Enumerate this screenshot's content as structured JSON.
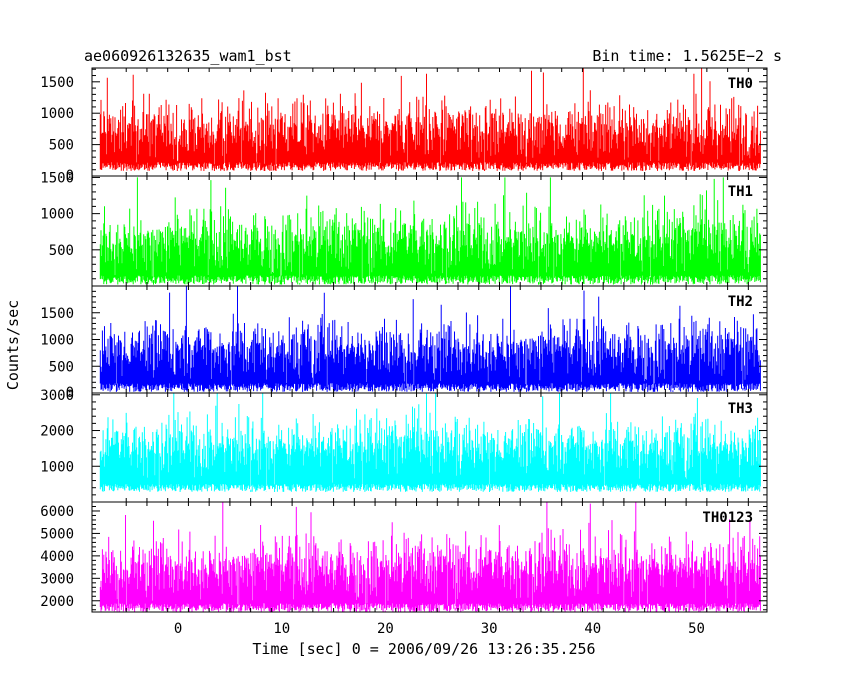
{
  "header": {
    "left_title": "ae060926132635_wam1_bst",
    "right_title": "Bin time: 1.5625E−2 s"
  },
  "chart_data": {
    "type": "line",
    "title": "ae060926132635_wam1_bst",
    "subtitle": "Bin time: 1.5625E−2 s",
    "xlabel": "Time [sec] 0 = 2006/09/26 13:26:35.256",
    "ylabel": "Counts/sec",
    "xlim": [
      -8.3,
      56.8
    ],
    "x_ticks": [
      0,
      10,
      20,
      30,
      40,
      50
    ],
    "data_x_range": [
      -7.5,
      56.2
    ],
    "bin_time_s": 0.015625,
    "grid": false,
    "legend": "none",
    "panels": [
      {
        "name": "TH0",
        "color": "#ff0000",
        "ylim": [
          0,
          1720
        ],
        "y_ticks": [
          500,
          1000,
          1500
        ],
        "y_tick_labels": [
          "500",
          "1000",
          "1500"
        ],
        "base_tick_label": "0",
        "series": {
          "mean": 750,
          "min": 80,
          "max": 1720,
          "spread": 230
        }
      },
      {
        "name": "TH1",
        "color": "#00ff00",
        "ylim": [
          0,
          1520
        ],
        "y_ticks": [
          500,
          1000,
          1500
        ],
        "y_tick_labels": [
          "500",
          "1000",
          "1500"
        ],
        "base_tick_label": "",
        "series": {
          "mean": 650,
          "min": 20,
          "max": 1500,
          "spread": 210
        }
      },
      {
        "name": "TH2",
        "color": "#0000ff",
        "ylim": [
          0,
          2000
        ],
        "y_ticks": [
          500,
          1000,
          1500
        ],
        "y_tick_labels": [
          "500",
          "1000",
          "1500"
        ],
        "base_tick_label": "0",
        "series": {
          "mean": 850,
          "min": 20,
          "max": 1990,
          "spread": 270
        }
      },
      {
        "name": "TH3",
        "color": "#00ffff",
        "ylim": [
          0,
          3050
        ],
        "y_ticks": [
          1000,
          2000,
          3000
        ],
        "y_tick_labels": [
          "1000",
          "2000",
          "3000"
        ],
        "base_tick_label": "",
        "series": {
          "mean": 1600,
          "min": 280,
          "max": 3050,
          "spread": 380
        }
      },
      {
        "name": "TH0123",
        "color": "#ff00ff",
        "ylim": [
          1500,
          6400
        ],
        "y_ticks": [
          2000,
          3000,
          4000,
          5000,
          6000
        ],
        "y_tick_labels": [
          "2000",
          "3000",
          "4000",
          "5000",
          "6000"
        ],
        "base_tick_label": "",
        "series": {
          "mean": 3600,
          "min": 1500,
          "max": 6400,
          "spread": 650
        }
      }
    ]
  }
}
